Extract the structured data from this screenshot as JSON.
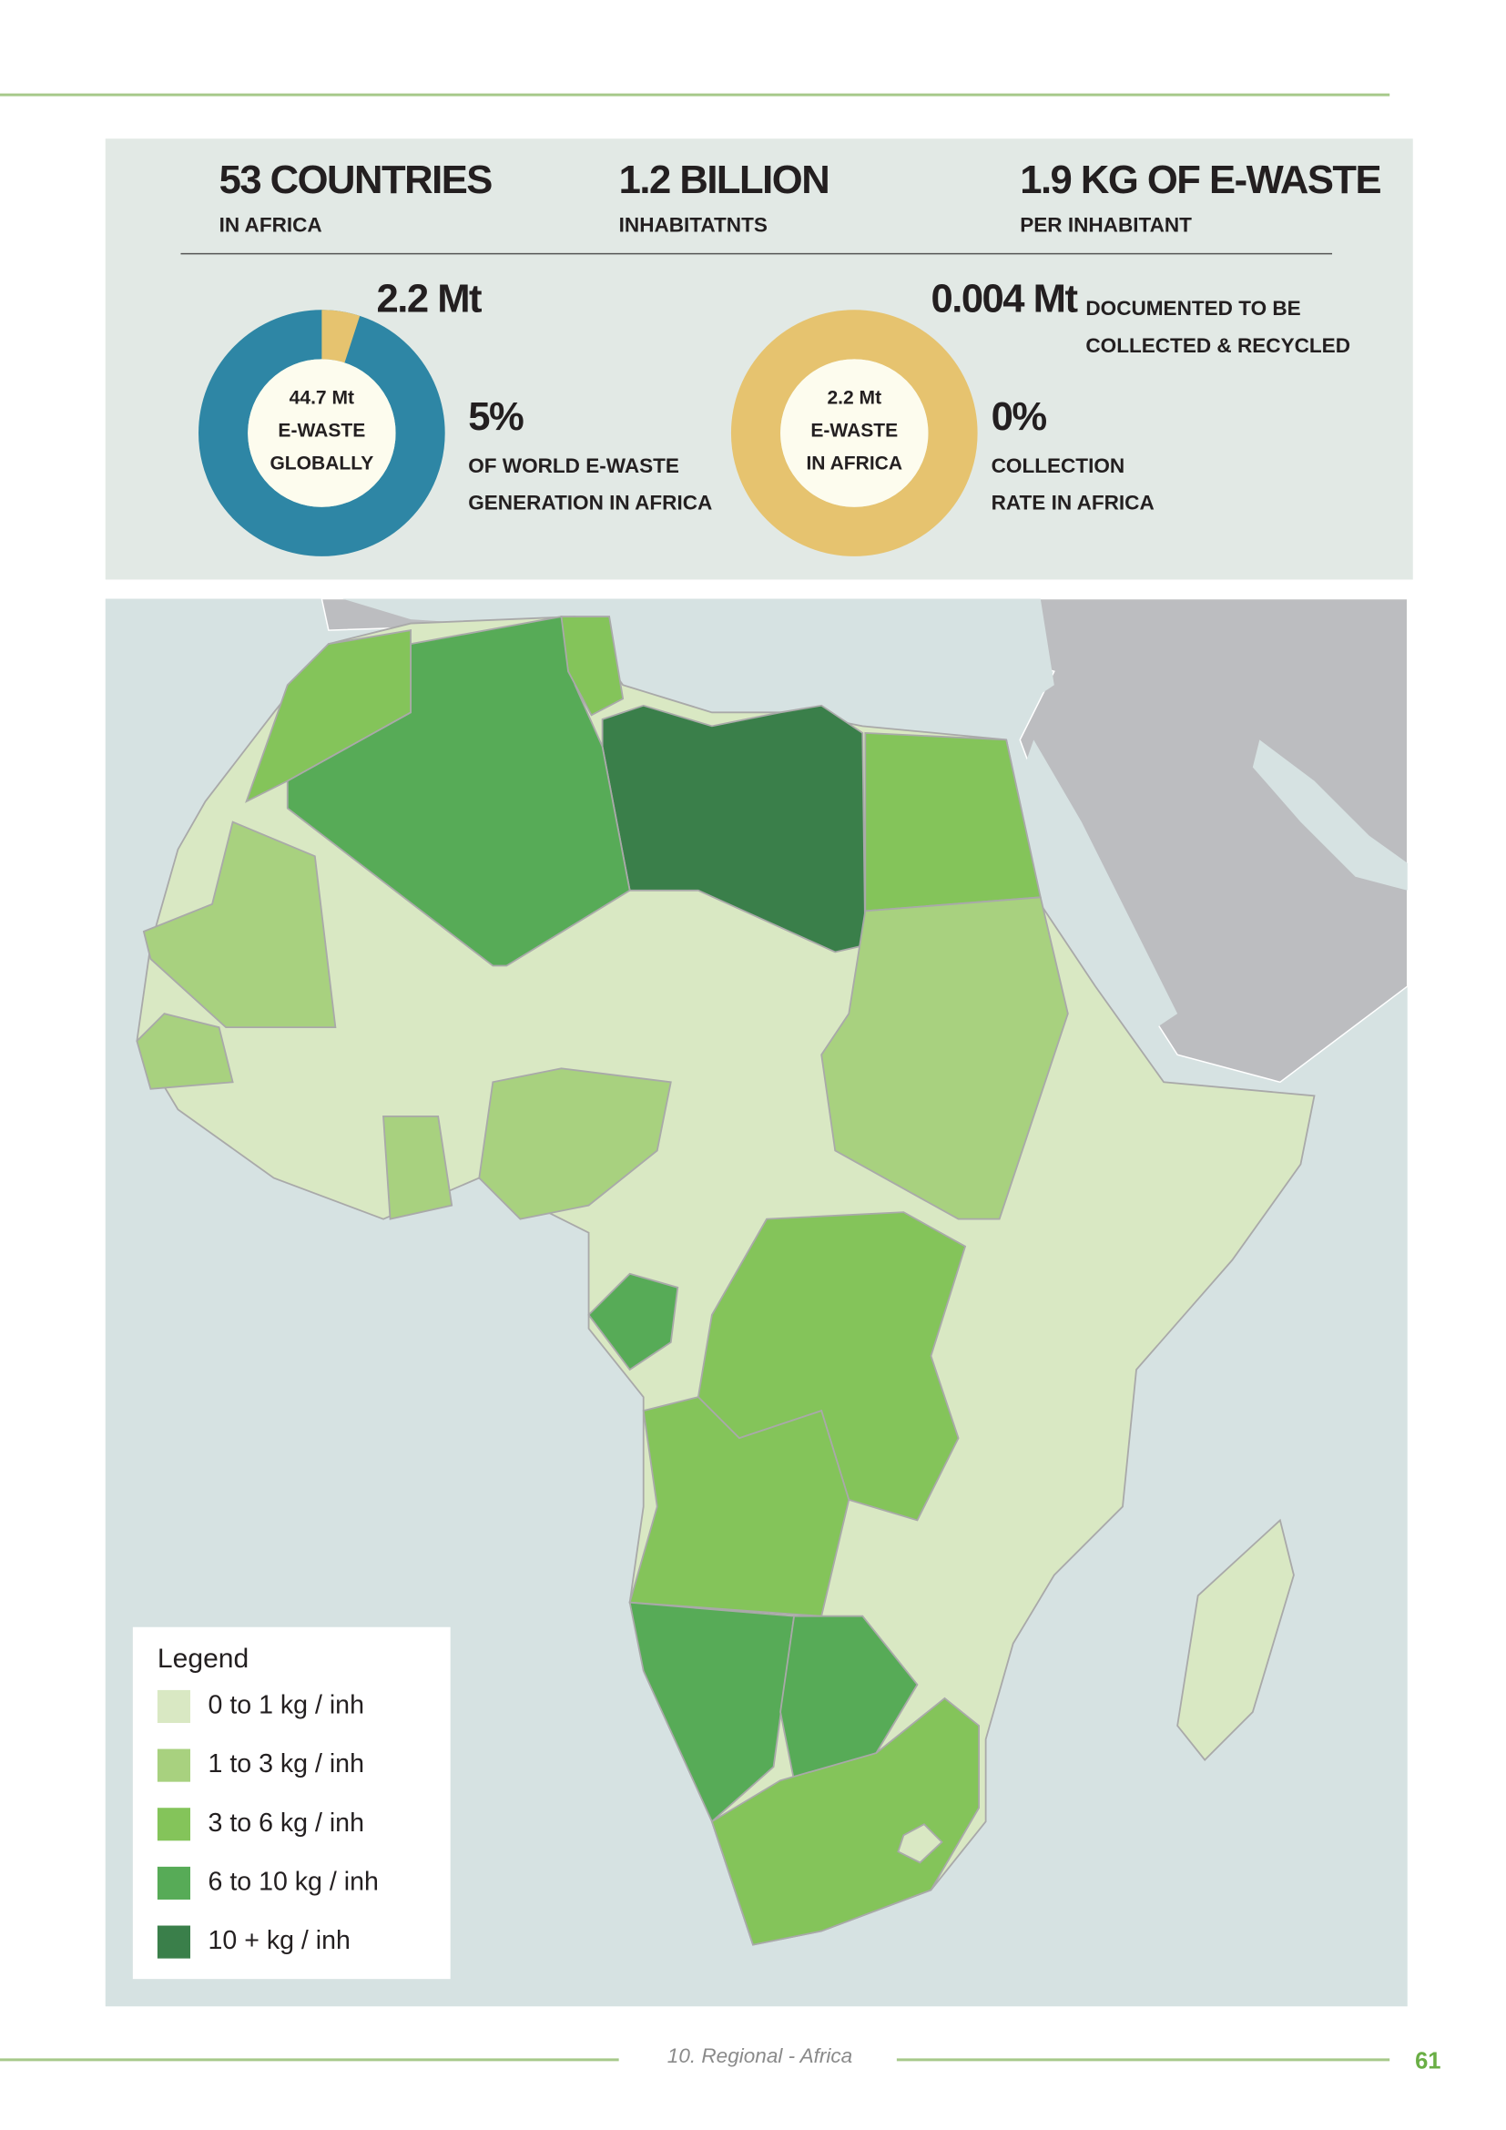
{
  "header": {
    "stats": [
      {
        "value": "53 COUNTRIES",
        "label": "IN AFRICA"
      },
      {
        "value": "1.2 BILLION",
        "label": "INHABITATNTS"
      },
      {
        "value": "1.9 KG OF E-WASTE",
        "label": "PER INHABITANT"
      }
    ]
  },
  "donuts": [
    {
      "amount": "2.2 Mt",
      "amount_note": [],
      "center": [
        "44.7 Mt",
        "E-WASTE",
        "GLOBALLY"
      ],
      "percent": {
        "value": 5,
        "label": "5%"
      },
      "caption": [
        "OF WORLD E-WASTE",
        "GENERATION IN AFRICA"
      ]
    },
    {
      "amount": "0.004 Mt",
      "amount_note": [
        "DOCUMENTED TO BE",
        "COLLECTED & RECYCLED"
      ],
      "center": [
        "2.2 Mt",
        "E-WASTE",
        "IN AFRICA"
      ],
      "percent": {
        "value": 0,
        "label": "0%"
      },
      "caption": [
        "COLLECTION",
        "RATE IN AFRICA"
      ]
    }
  ],
  "legend": {
    "title": "Legend",
    "items": [
      {
        "label": "0 to 1 kg / inh",
        "color": "#d9e8c3"
      },
      {
        "label": "1 to 3 kg / inh",
        "color": "#a8d17f"
      },
      {
        "label": "3 to 6 kg / inh",
        "color": "#84c45a"
      },
      {
        "label": "6 to 10 kg / inh",
        "color": "#57ab57"
      },
      {
        "label": "10 + kg / inh",
        "color": "#3a7f4a"
      }
    ]
  },
  "footer": {
    "section": "10. Regional - Africa",
    "page": "61"
  }
}
